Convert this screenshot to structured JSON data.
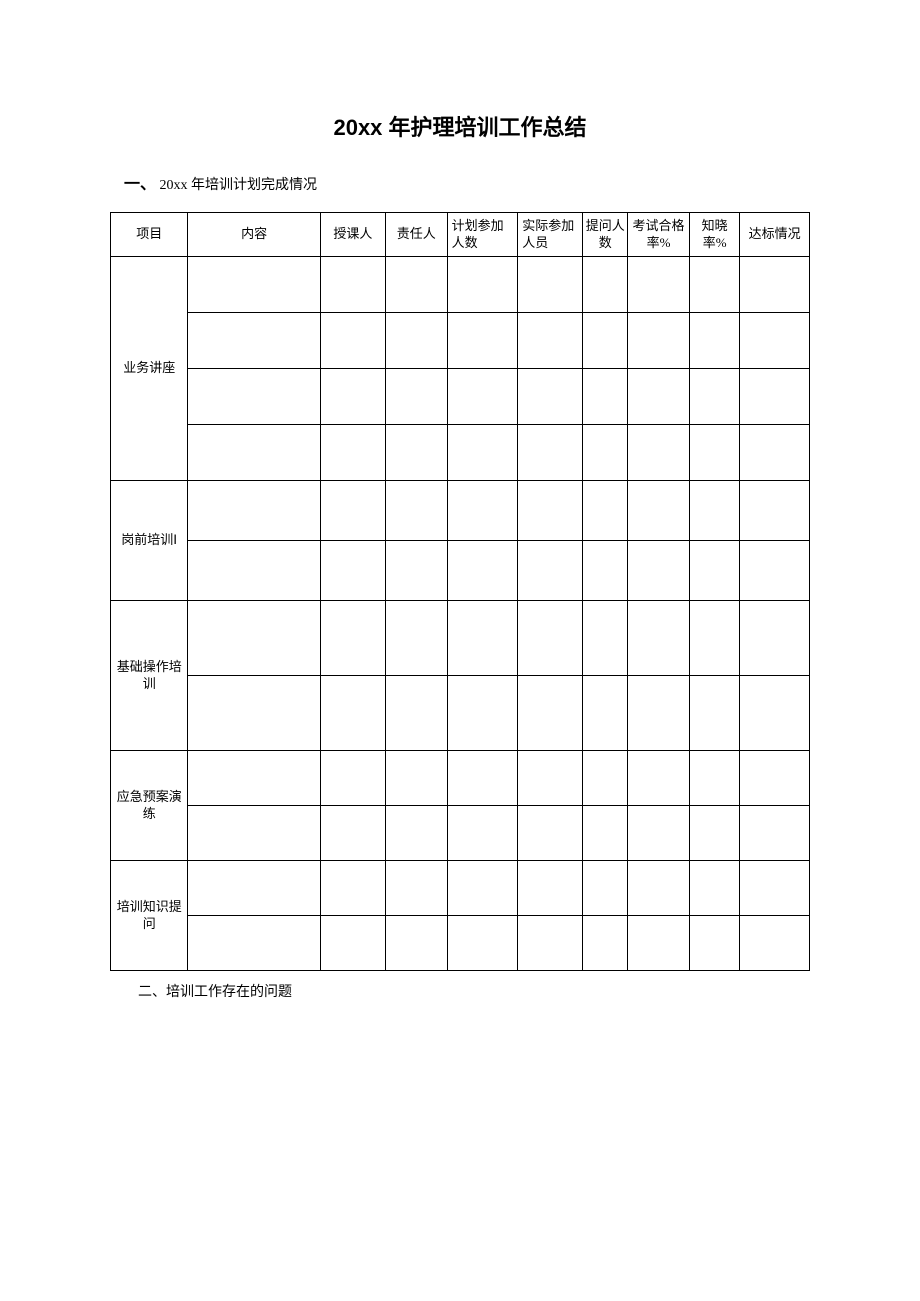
{
  "title": "20xx 年护理培训工作总结",
  "section1_marker": "一、",
  "section1_text": "20xx 年培训计划完成情况",
  "section2_text": "二、培训工作存在的问题",
  "table": {
    "headers": {
      "project": "项目",
      "content": "内容",
      "lecturer": "授课人",
      "responsible": "责任人",
      "planned": "计划参加人数",
      "actual": "实际参加人员",
      "question": "提问人数",
      "passrate": "考试合格率%",
      "awareness": "知晓率%",
      "compliance": "达标情况"
    },
    "groups": [
      {
        "label": "业务讲座",
        "subrows": 4,
        "rowClass": "row-h1",
        "cells": [
          [
            "",
            "",
            "",
            "",
            "",
            "",
            "",
            "",
            ""
          ],
          [
            "",
            "",
            "",
            "",
            "",
            "",
            "",
            "",
            ""
          ],
          [
            "",
            "",
            "",
            "",
            "",
            "",
            "",
            "",
            ""
          ],
          [
            "",
            "",
            "",
            "",
            "",
            "",
            "",
            "",
            ""
          ]
        ]
      },
      {
        "label": "岗前培训Ⅰ",
        "subrows": 2,
        "rowClass": "row-h-small",
        "cells": [
          [
            "",
            "",
            "",
            "",
            "",
            "",
            "",
            "",
            ""
          ],
          [
            "",
            "",
            "",
            "",
            "",
            "",
            "",
            "",
            ""
          ]
        ]
      },
      {
        "label": "基础操作培训",
        "subrows": 2,
        "rowClass": "row-h-mid1",
        "cells": [
          [
            "",
            "",
            "",
            "",
            "",
            "",
            "",
            "",
            ""
          ],
          [
            "",
            "",
            "",
            "",
            "",
            "",
            "",
            "",
            ""
          ]
        ]
      },
      {
        "label": "应急预案演练",
        "subrows": 2,
        "rowClass": "row-h-small2",
        "cells": [
          [
            "",
            "",
            "",
            "",
            "",
            "",
            "",
            "",
            ""
          ],
          [
            "",
            "",
            "",
            "",
            "",
            "",
            "",
            "",
            ""
          ]
        ]
      },
      {
        "label": "培训知识提问",
        "subrows": 2,
        "rowClass": "row-h-small2",
        "cells": [
          [
            "",
            "",
            "",
            "",
            "",
            "",
            "",
            "",
            ""
          ],
          [
            "",
            "",
            "",
            "",
            "",
            "",
            "",
            "",
            ""
          ]
        ]
      }
    ],
    "colWidths": {
      "project": 69,
      "content": 118,
      "lecturer": 58,
      "responsible": 55,
      "planned": 63,
      "actual": 58,
      "question": 40,
      "passrate": 55,
      "awareness": 45,
      "compliance": 62
    },
    "border_color": "#000000",
    "background_color": "#ffffff",
    "font_size": 13,
    "text_color": "#000000"
  }
}
